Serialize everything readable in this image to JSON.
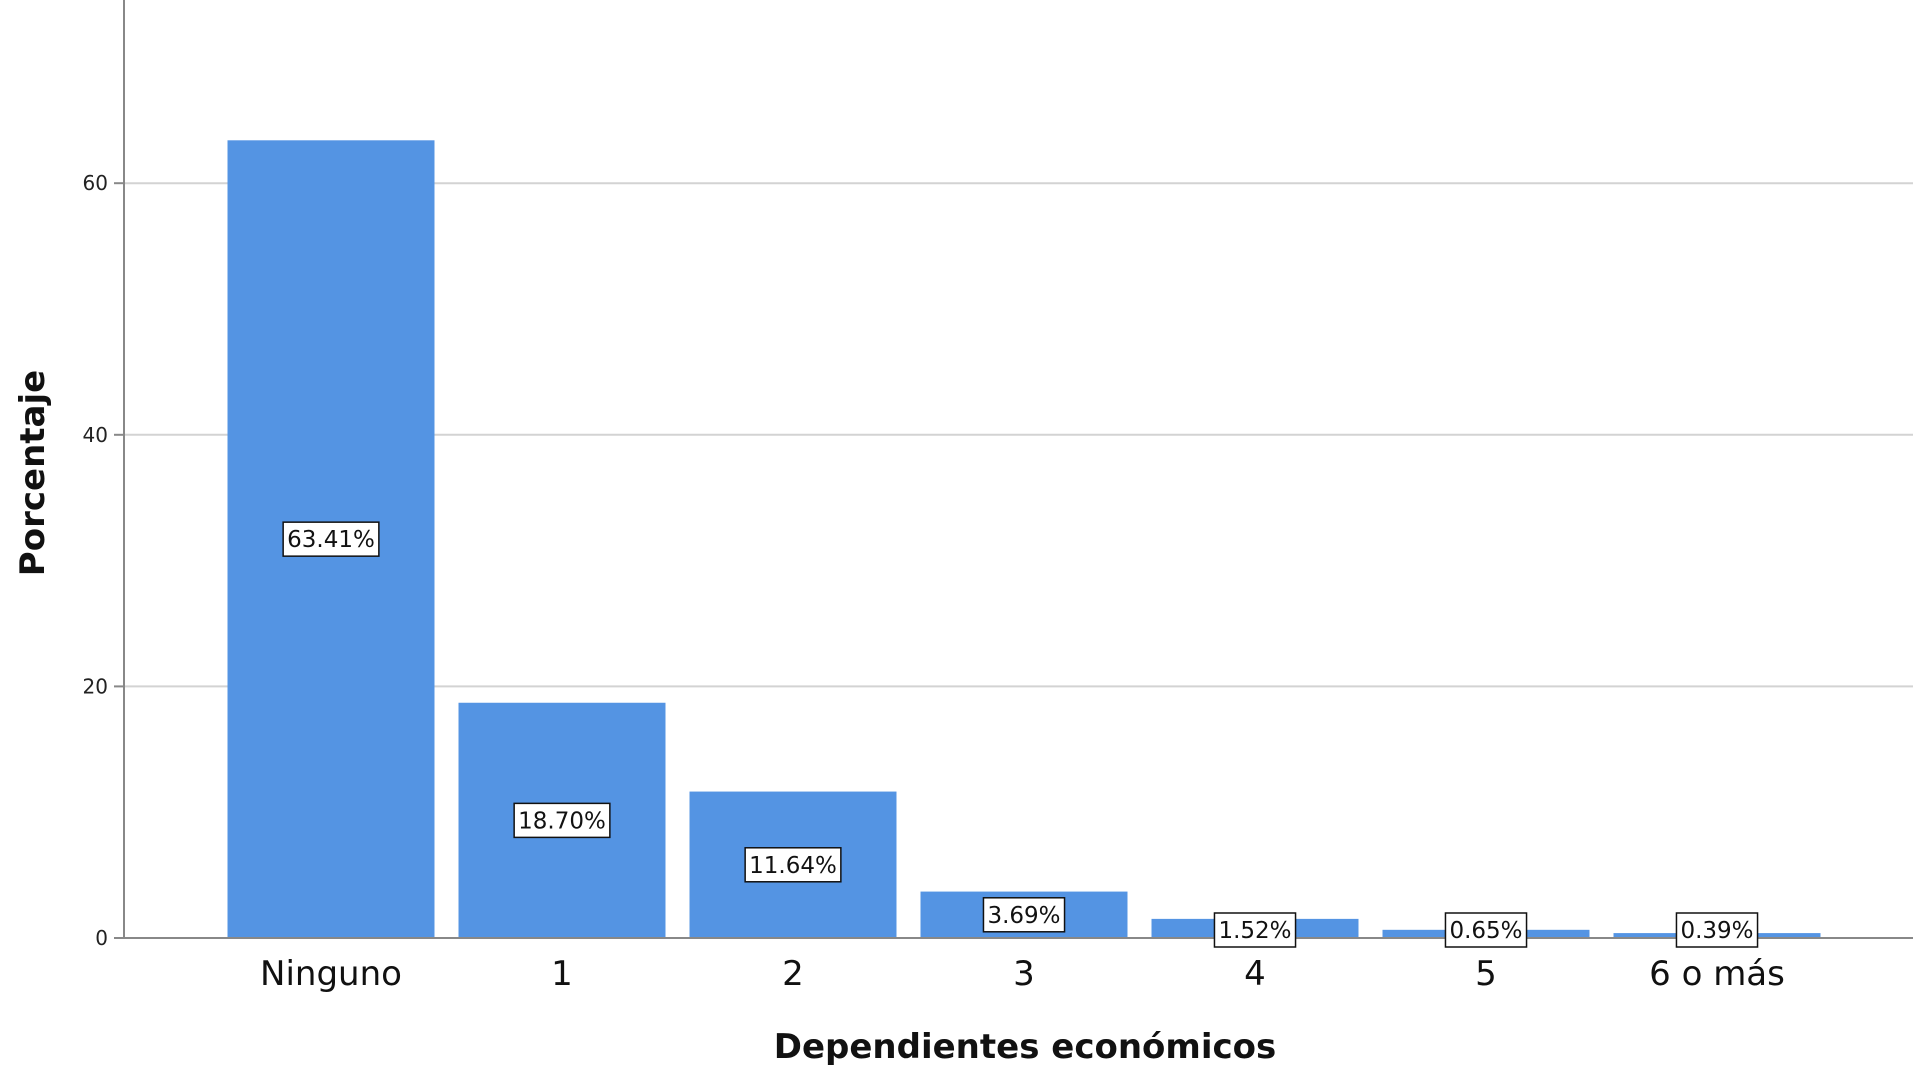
{
  "chart_data": {
    "type": "bar",
    "title": "",
    "xlabel": "Dependientes económicos",
    "ylabel": "Porcentaje",
    "categories": [
      "Ninguno",
      "1",
      "2",
      "3",
      "4",
      "5",
      "6 o más"
    ],
    "values": [
      63.41,
      18.7,
      11.64,
      3.69,
      1.52,
      0.65,
      0.39
    ],
    "data_labels": [
      "63.41%",
      "18.70%",
      "11.64%",
      "3.69%",
      "1.52%",
      "0.65%",
      "0.39%"
    ],
    "ylim": [
      0,
      74
    ],
    "yticks": [
      0,
      20,
      40,
      60
    ],
    "grid": true,
    "bar_color": "#5494e3",
    "grid_color": "#d3d3d3",
    "axis_color": "#888888",
    "legend": "none"
  }
}
